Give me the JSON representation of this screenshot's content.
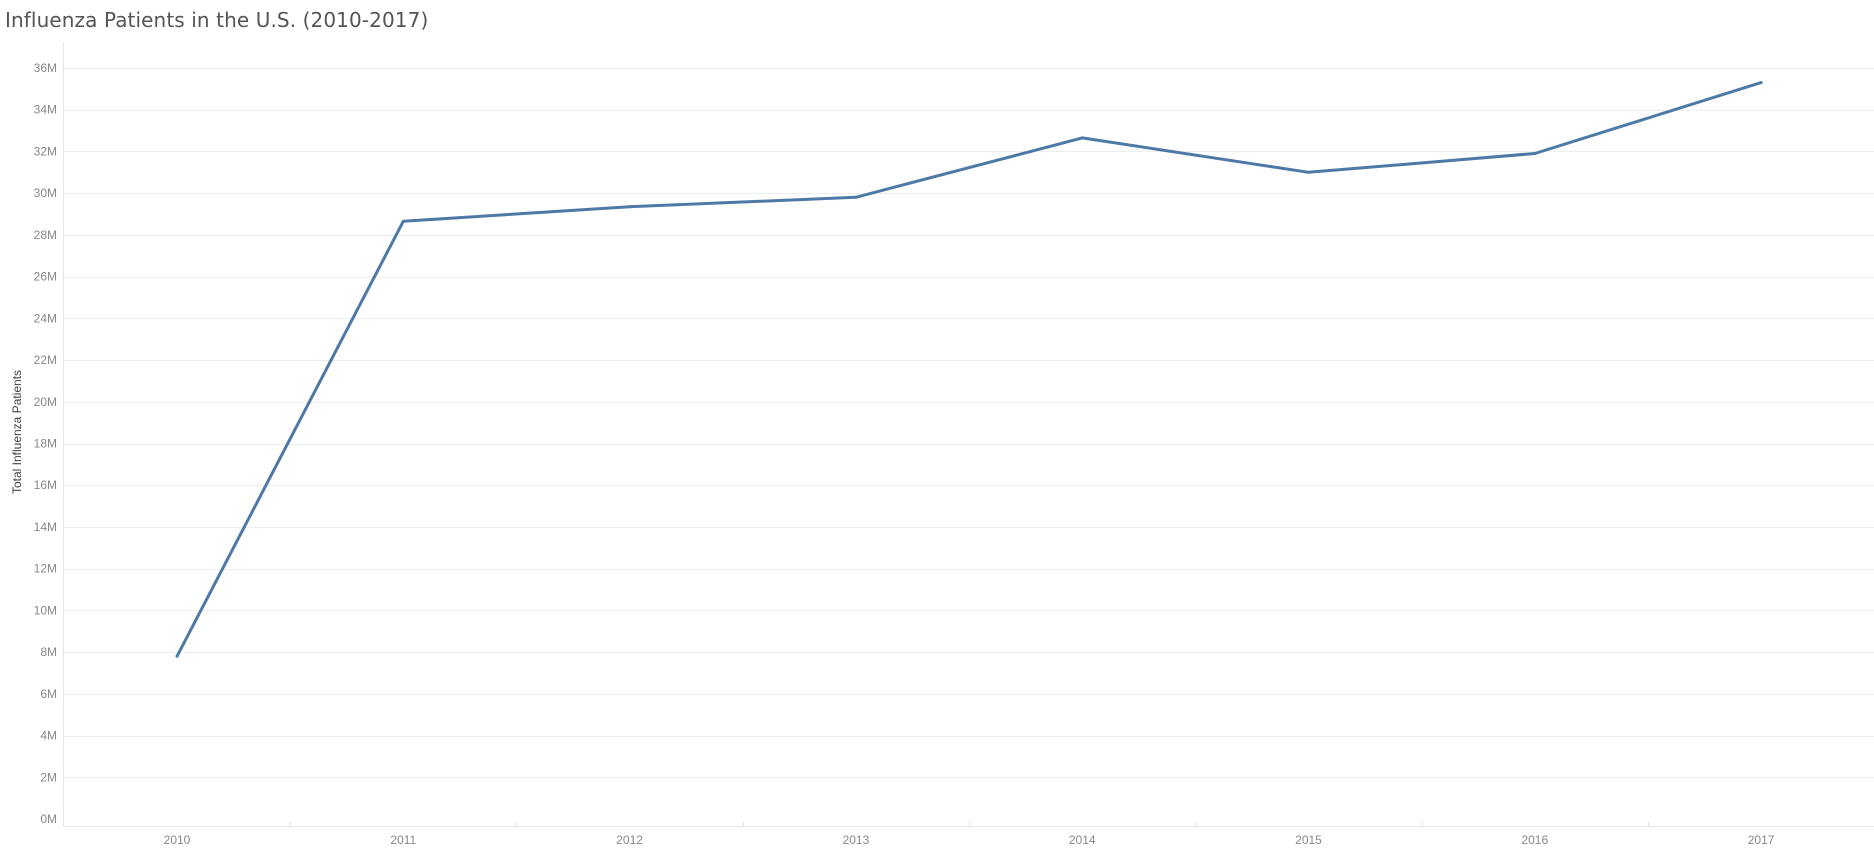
{
  "chart_data": {
    "type": "line",
    "title": "Influenza Patients in the U.S. (2010-2017)",
    "xlabel": "",
    "ylabel": "Total Influenza Patients",
    "x": [
      "2010",
      "2011",
      "2012",
      "2013",
      "2014",
      "2015",
      "2016",
      "2017"
    ],
    "series": [
      {
        "values": [
          7800000,
          28650000,
          29350000,
          29800000,
          32650000,
          31000000,
          31900000,
          35300000
        ]
      }
    ],
    "ylim": [
      0,
      37000000
    ],
    "yticks": [
      0,
      2000000,
      4000000,
      6000000,
      8000000,
      10000000,
      12000000,
      14000000,
      16000000,
      18000000,
      20000000,
      22000000,
      24000000,
      26000000,
      28000000,
      30000000,
      32000000,
      34000000,
      36000000
    ],
    "ytick_labels": [
      "0M",
      "2M",
      "4M",
      "6M",
      "8M",
      "10M",
      "12M",
      "14M",
      "16M",
      "18M",
      "20M",
      "22M",
      "24M",
      "26M",
      "28M",
      "30M",
      "32M",
      "34M",
      "36M"
    ],
    "grid": "horizontal",
    "line_color": "#4e79a7",
    "grid_color": "#eeeeee",
    "axis_color": "#e6e6e6",
    "legend": "none"
  }
}
